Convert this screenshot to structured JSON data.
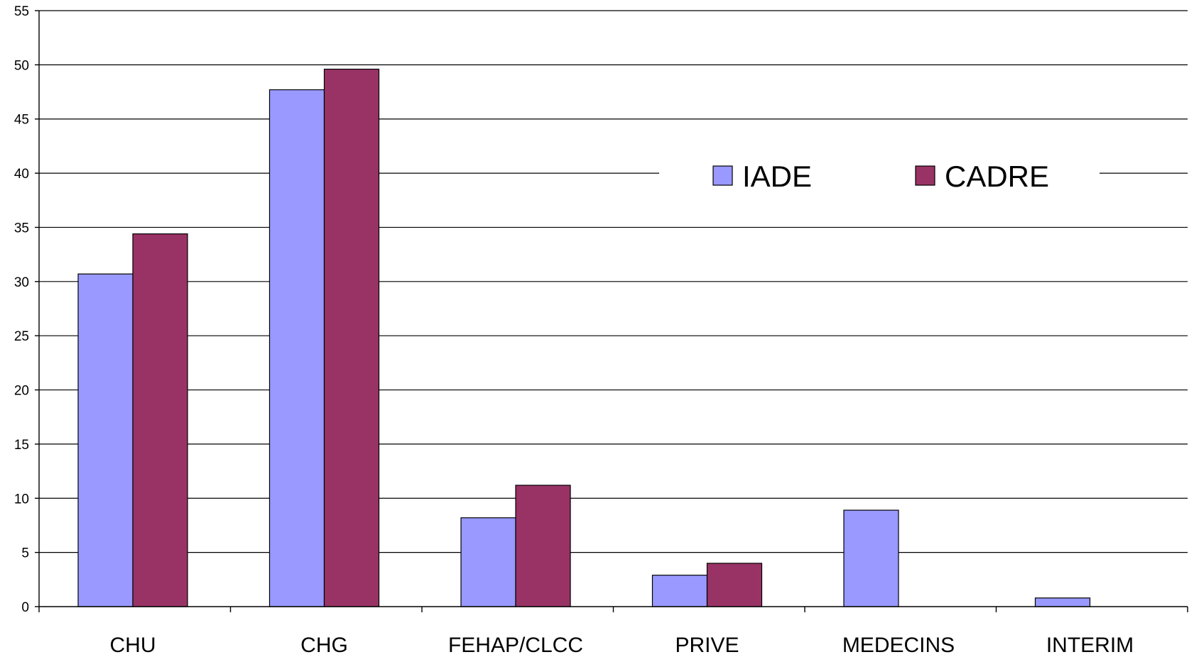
{
  "chart_data": {
    "type": "bar",
    "categories": [
      "CHU",
      "CHG",
      "FEHAP/CLCC",
      "PRIVE",
      "MEDECINS",
      "INTERIM"
    ],
    "series": [
      {
        "name": "IADE",
        "values": [
          30.7,
          47.7,
          8.2,
          2.9,
          8.9,
          0.8
        ],
        "color": "#9999ff"
      },
      {
        "name": "CADRE",
        "values": [
          34.4,
          49.6,
          11.2,
          4.0,
          0,
          0
        ],
        "color": "#993366"
      }
    ],
    "yticks": [
      0,
      5,
      10,
      15,
      20,
      25,
      30,
      35,
      40,
      45,
      50,
      55
    ],
    "ylim": [
      0,
      55
    ],
    "grid": true,
    "legend_position": "top-right"
  }
}
